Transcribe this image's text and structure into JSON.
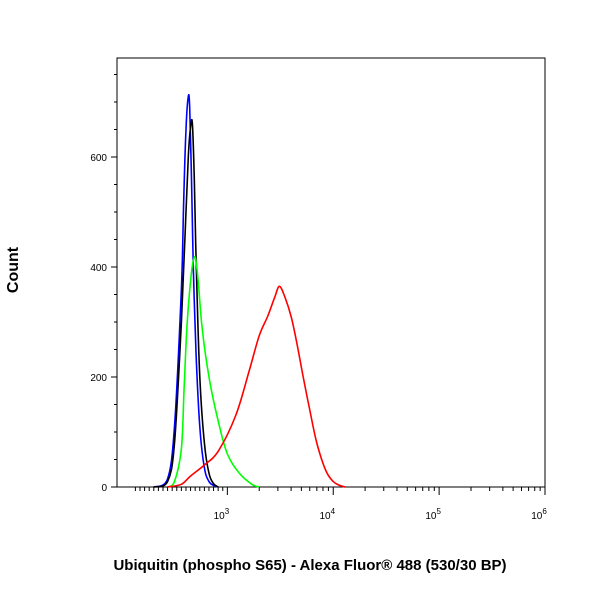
{
  "chart_data": {
    "type": "line",
    "xlabel": "Ubiquitin (phospho S65) - Alexa Fluor® 488 (530/30 BP)",
    "ylabel": "Count",
    "x_scale": "log",
    "xlim": [
      -1400,
      1000000
    ],
    "ylim": [
      0,
      780
    ],
    "x_ticks": [
      {
        "value": 1000,
        "label": "10",
        "exp": "3"
      },
      {
        "value": 10000,
        "label": "10",
        "exp": "4"
      },
      {
        "value": 100000,
        "label": "10",
        "exp": "5"
      },
      {
        "value": 1000000,
        "label": "10",
        "exp": "6"
      }
    ],
    "y_ticks": [
      {
        "value": 0,
        "label": "0"
      },
      {
        "value": 200,
        "label": "200"
      },
      {
        "value": 400,
        "label": "400"
      },
      {
        "value": 600,
        "label": "600"
      }
    ],
    "grid": false,
    "series": [
      {
        "color": "#0000ff",
        "x": [
          -600,
          -300,
          -150,
          0,
          50,
          100,
          150,
          180,
          220,
          260,
          320,
          400,
          500,
          600,
          700,
          800
        ],
        "y": [
          0,
          15,
          110,
          360,
          520,
          650,
          710,
          690,
          560,
          400,
          240,
          110,
          35,
          10,
          3,
          0
        ]
      },
      {
        "color": "#000000",
        "x": [
          -600,
          -300,
          -150,
          0,
          80,
          150,
          200,
          240,
          280,
          330,
          400,
          500,
          600,
          700,
          800
        ],
        "y": [
          0,
          10,
          80,
          300,
          460,
          600,
          655,
          660,
          560,
          380,
          200,
          80,
          25,
          6,
          0
        ]
      },
      {
        "color": "#00ff00",
        "x": [
          -300,
          -150,
          0,
          60,
          120,
          200,
          260,
          310,
          370,
          450,
          600,
          800,
          1000,
          1300,
          1700,
          2000
        ],
        "y": [
          0,
          10,
          70,
          180,
          290,
          375,
          412,
          415,
          370,
          290,
          200,
          120,
          60,
          25,
          5,
          0
        ]
      },
      {
        "color": "#ff0000",
        "x": [
          -300,
          0,
          200,
          500,
          800,
          1200,
          1600,
          2000,
          2400,
          2800,
          3100,
          3500,
          4000,
          4500,
          5200,
          6000,
          7000,
          8500,
          10000,
          11500,
          13000
        ],
        "y": [
          0,
          5,
          20,
          40,
          65,
          130,
          210,
          275,
          310,
          345,
          365,
          345,
          310,
          265,
          200,
          140,
          80,
          30,
          10,
          3,
          0
        ]
      }
    ]
  }
}
